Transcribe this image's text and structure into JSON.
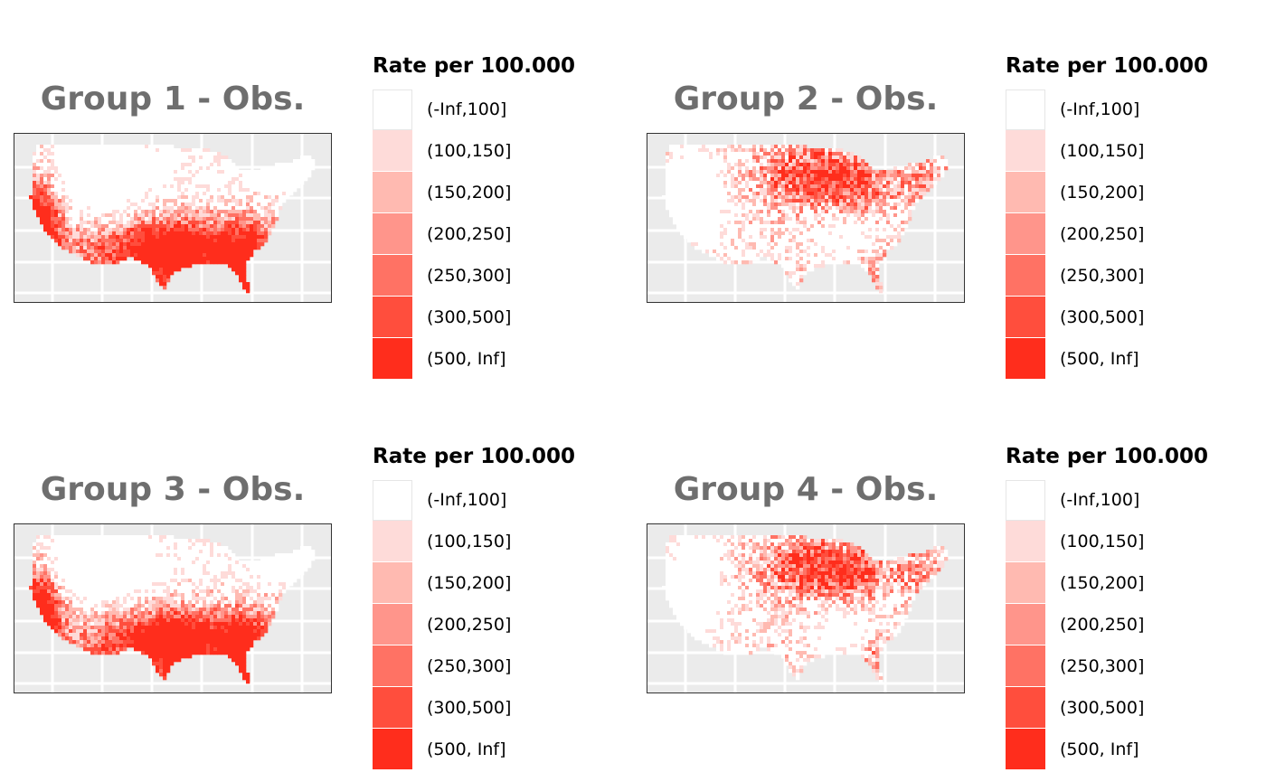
{
  "legend": {
    "title": "Rate per 100.000",
    "classes": [
      {
        "label": "(-Inf,100]",
        "color": "#ffffff"
      },
      {
        "label": "(100,150]",
        "color": "#fedbd9"
      },
      {
        "label": "(150,200]",
        "color": "#ffbab1"
      },
      {
        "label": "(200,250]",
        "color": "#ff958b"
      },
      {
        "label": "(250,300]",
        "color": "#ff7264"
      },
      {
        "label": "(300,500]",
        "color": "#ff4e3d"
      },
      {
        "label": "(500, Inf]",
        "color": "#ff2d1c"
      }
    ]
  },
  "map_background": "#ebebeb",
  "grid_color": "#ffffff",
  "panels": [
    {
      "title": "Group 1 - Obs.",
      "pattern": "south-west"
    },
    {
      "title": "Group 2 - Obs.",
      "pattern": "midwest-east"
    },
    {
      "title": "Group 3 - Obs.",
      "pattern": "south-west"
    },
    {
      "title": "Group 4 - Obs.",
      "pattern": "midwest-east"
    }
  ]
}
